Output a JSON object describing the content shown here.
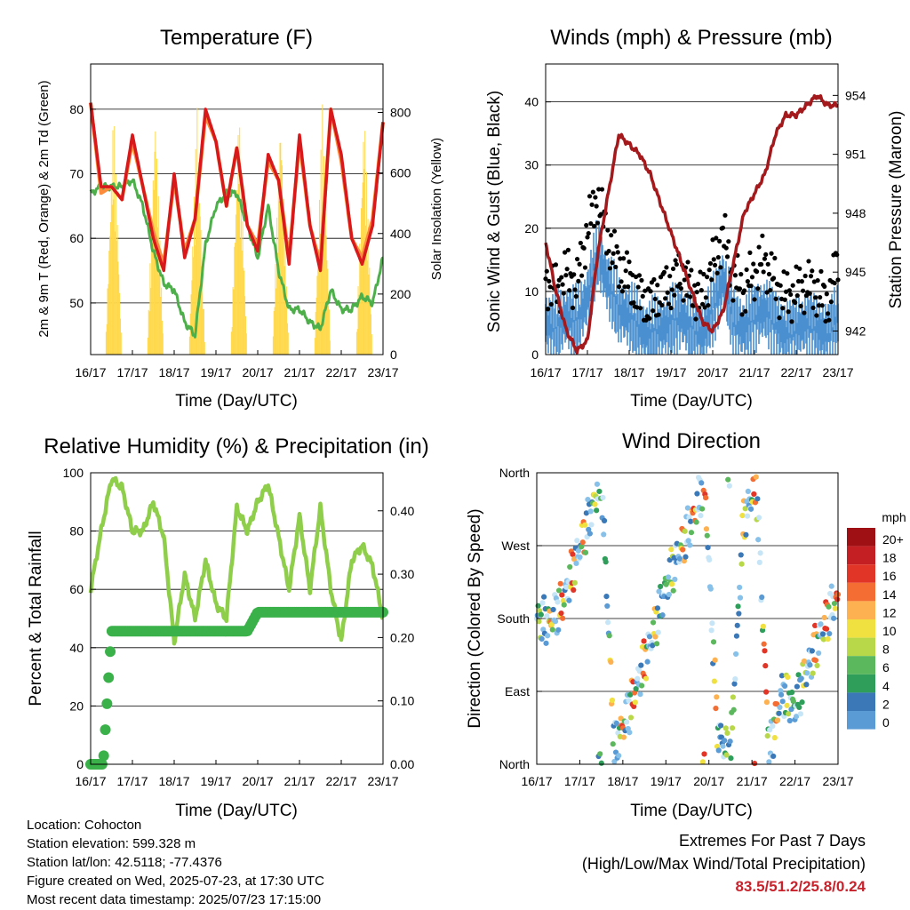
{
  "panels": {
    "temperature": {
      "title": "Temperature (F)",
      "ylabel_left": "2m & 9m T (Red, Orange) & 2m Td (Green)",
      "ylabel_right": "Solar Insolation (Yellow)",
      "xlabel": "Time (Day/UTC)",
      "yticks_left": [
        "50",
        "60",
        "70",
        "80"
      ],
      "yticks_right": [
        "0",
        "200",
        "400",
        "600",
        "800"
      ]
    },
    "winds": {
      "title": "Winds (mph) & Pressure (mb)",
      "ylabel_left": "Sonic Wind & Gust (Blue, Black)",
      "ylabel_right": "Station Pressure (Maroon)",
      "xlabel": "Time (Day/UTC)",
      "yticks_left": [
        "0",
        "10",
        "20",
        "30",
        "40"
      ],
      "yticks_right": [
        "942",
        "945",
        "948",
        "951",
        "954"
      ]
    },
    "humidity": {
      "title": "Relative Humidity (%) & Precipitation (in)",
      "ylabel_left": "Percent & Total Rainfall",
      "xlabel": "Time (Day/UTC)",
      "yticks_left": [
        "0",
        "20",
        "40",
        "60",
        "80",
        "100"
      ],
      "yticks_right": [
        "0.00",
        "0.10",
        "0.20",
        "0.30",
        "0.40"
      ]
    },
    "direction": {
      "title": "Wind Direction",
      "ylabel_left": "Direction (Colored By Speed)",
      "xlabel": "Time (Day/UTC)",
      "yticks_left": [
        "North",
        "East",
        "South",
        "West",
        "North"
      ],
      "legend_title": "mph",
      "legend_labels": [
        "20+",
        "18",
        "16",
        "14",
        "12",
        "10",
        "8",
        "6",
        "4",
        "2",
        "0"
      ]
    }
  },
  "xticks": [
    "16/17",
    "17/17",
    "18/17",
    "19/17",
    "20/17",
    "21/17",
    "22/17",
    "23/17"
  ],
  "colors": {
    "temp_2m": "#d7191c",
    "temp_9m": "#fd8d3c",
    "dewpoint": "#4daf4a",
    "solar": "#ffd94a",
    "wind": "#4a90d0",
    "gust": "#000000",
    "pressure": "#a3191c",
    "rh": "#8fce4a",
    "precip": "#3bb14a",
    "speed_scale": [
      "#c6e5f7",
      "#87c1ea",
      "#5b9bd5",
      "#3a78b8",
      "#2f9e5a",
      "#5cb85c",
      "#b8d84a",
      "#f0e040",
      "#fdb150",
      "#f46d32",
      "#e03527",
      "#c41f22",
      "#9e1014"
    ]
  },
  "info": {
    "location": "Location: Cohocton",
    "elevation": "Station elevation: 599.328 m",
    "latlon": "Station lat/lon: 42.5118; -77.4376",
    "created": "Figure created on Wed, 2025-07-23, at 17:30 UTC",
    "recent": "Most recent data timestamp: 2025/07/23 17:15:00"
  },
  "extremes": {
    "title": "Extremes For Past 7 Days",
    "subtitle": "(High/Low/Max Wind/Total Precipitation)",
    "values": "83.5/51.2/25.8/0.24"
  },
  "chart_data": [
    {
      "type": "line",
      "x": [
        0,
        0.25,
        0.5,
        0.75,
        1,
        1.25,
        1.5,
        1.75,
        2,
        2.25,
        2.5,
        2.75,
        3,
        3.25,
        3.5,
        3.75,
        4,
        4.25,
        4.5,
        4.75,
        5,
        5.25,
        5.5,
        5.75,
        6,
        6.25,
        6.5,
        6.75,
        7
      ],
      "series": [
        {
          "values": [
            81,
            68,
            68,
            66,
            76,
            68,
            60,
            55,
            70,
            57,
            63,
            80,
            75,
            65,
            74,
            62,
            58,
            73,
            69,
            56,
            76,
            62,
            55,
            80,
            73,
            60,
            56,
            62,
            78
          ]
        },
        {
          "values": [
            81,
            67,
            68,
            66,
            75,
            68,
            61,
            56,
            69,
            58,
            63,
            79,
            75,
            65,
            74,
            62,
            59,
            72,
            69,
            57,
            75,
            62,
            56,
            80,
            72,
            60,
            57,
            63,
            78
          ]
        },
        {
          "values": [
            67,
            68,
            68,
            68,
            69,
            65,
            58,
            53,
            52,
            47,
            45,
            59,
            65,
            67,
            67,
            62,
            57,
            65,
            55,
            49,
            49,
            47,
            46,
            52,
            49,
            49,
            51,
            50,
            57
          ]
        },
        {
          "values": [
            0,
            0,
            0,
            0,
            830,
            0,
            0,
            0,
            830,
            0,
            0,
            0,
            830,
            0,
            0,
            0,
            830,
            0,
            0,
            0,
            830,
            0,
            0,
            0,
            830,
            0,
            0,
            0,
            0
          ]
        }
      ],
      "ylim": [
        42,
        87
      ],
      "y2lim": [
        0,
        960
      ]
    },
    {
      "type": "line",
      "x": [
        0,
        0.25,
        0.5,
        0.75,
        1,
        1.25,
        1.5,
        1.75,
        2,
        2.25,
        2.5,
        2.75,
        3,
        3.25,
        3.5,
        3.75,
        4,
        4.25,
        4.5,
        4.75,
        5,
        5.25,
        5.5,
        5.75,
        6,
        6.25,
        6.5,
        6.75,
        7
      ],
      "series": [
        {
          "values": [
            6,
            5,
            7,
            6,
            10,
            17,
            12,
            8,
            7,
            5,
            4,
            5,
            6,
            7,
            5,
            4,
            8,
            13,
            6,
            5,
            7,
            8,
            6,
            4,
            5,
            6,
            5,
            4,
            7
          ]
        },
        {
          "values": [
            12,
            10,
            13,
            11,
            20,
            25,
            18,
            14,
            12,
            9,
            8,
            10,
            11,
            13,
            10,
            9,
            14,
            19,
            12,
            10,
            13,
            15,
            11,
            9,
            10,
            11,
            10,
            8,
            15
          ]
        },
        {
          "values": [
            946.5,
            944,
            942,
            941,
            941.5,
            946,
            949,
            952,
            951.5,
            951,
            950,
            948.5,
            947,
            945.5,
            944,
            942.5,
            942,
            943,
            945.5,
            948,
            949,
            950,
            952,
            953,
            953,
            953.5,
            954,
            953.5,
            953.5
          ]
        }
      ],
      "ylim": [
        0,
        46
      ],
      "y2lim": [
        940.8,
        955.6
      ]
    },
    {
      "type": "line",
      "x": [
        0,
        0.25,
        0.5,
        0.75,
        1,
        1.25,
        1.5,
        1.75,
        2,
        2.25,
        2.5,
        2.75,
        3,
        3.25,
        3.5,
        3.75,
        4,
        4.25,
        4.5,
        4.75,
        5,
        5.25,
        5.5,
        5.75,
        6,
        6.25,
        6.5,
        6.75,
        7
      ],
      "series": [
        {
          "values": [
            60,
            80,
            98,
            95,
            80,
            80,
            90,
            78,
            42,
            65,
            50,
            70,
            55,
            50,
            88,
            80,
            90,
            96,
            78,
            60,
            85,
            60,
            88,
            60,
            42,
            70,
            75,
            68,
            50
          ]
        },
        {
          "values": [
            0,
            0,
            0.21,
            0.21,
            0.21,
            0.21,
            0.21,
            0.21,
            0.21,
            0.21,
            0.21,
            0.21,
            0.21,
            0.21,
            0.21,
            0.21,
            0.24,
            0.24,
            0.24,
            0.24,
            0.24,
            0.24,
            0.24,
            0.24,
            0.24,
            0.24,
            0.24,
            0.24,
            0.24
          ]
        }
      ],
      "ylim": [
        0,
        100
      ],
      "y2lim": [
        0,
        0.46
      ]
    },
    {
      "type": "scatter",
      "x": [
        0,
        0.3,
        0.6,
        0.9,
        1.2,
        1.5,
        1.8,
        2.1,
        2.4,
        2.7,
        3.0,
        3.3,
        3.6,
        3.9,
        4.2,
        4.5,
        4.8,
        5.1,
        5.4,
        5.7,
        6.0,
        6.3,
        6.6,
        6.9
      ],
      "series": [
        {
          "values": [
            180,
            175,
            200,
            250,
            300,
            355,
            20,
            60,
            110,
            160,
            220,
            260,
            300,
            350,
            40,
            10,
            300,
            345,
            15,
            90,
            70,
            120,
            160,
            200
          ]
        }
      ],
      "ylim": [
        0,
        360
      ]
    }
  ]
}
